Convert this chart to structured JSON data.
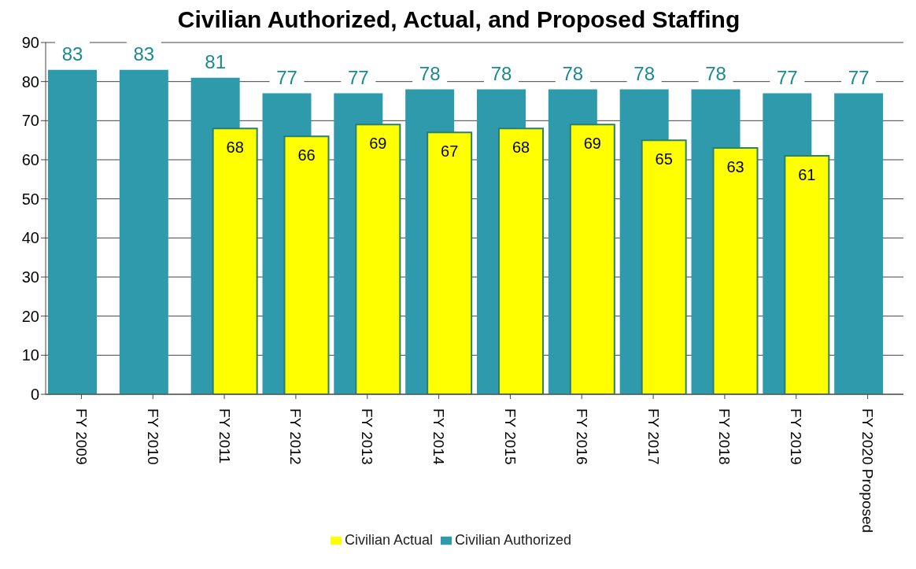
{
  "chart_data": {
    "type": "bar",
    "title": "Civilian Authorized, Actual, and Proposed Staffing",
    "categories": [
      "FY 2009",
      "FY 2010",
      "FY 2011",
      "FY 2012",
      "FY 2013",
      "FY 2014",
      "FY 2015",
      "FY 2016",
      "FY 2017",
      "FY 2018",
      "FY 2019",
      "FY 2020 Proposed"
    ],
    "series": [
      {
        "name": "Civilian Authorized",
        "color": "#2e9aab",
        "values": [
          83,
          83,
          81,
          77,
          77,
          78,
          78,
          78,
          78,
          78,
          77,
          77
        ]
      },
      {
        "name": "Civilian Actual",
        "color": "#ffff00",
        "values": [
          null,
          null,
          68,
          66,
          69,
          67,
          68,
          69,
          65,
          63,
          61,
          null
        ]
      }
    ],
    "ylim": [
      0,
      90
    ],
    "yticks": [
      0,
      10,
      20,
      30,
      40,
      50,
      60,
      70,
      80,
      90
    ],
    "grid": "y",
    "legend": "bottom",
    "data_labels": true
  }
}
